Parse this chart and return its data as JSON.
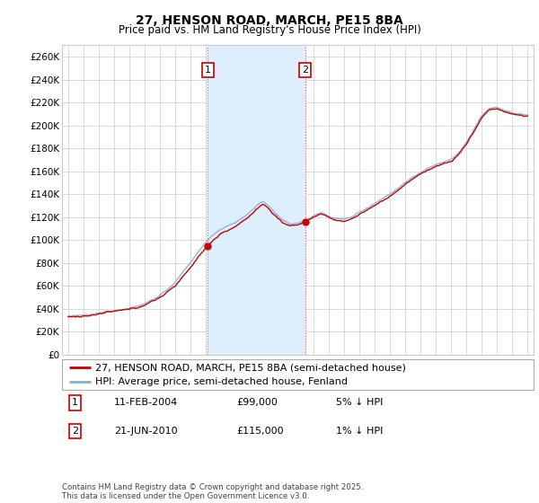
{
  "title": "27, HENSON ROAD, MARCH, PE15 8BA",
  "subtitle": "Price paid vs. HM Land Registry's House Price Index (HPI)",
  "ylabel_values": [
    "£0",
    "£20K",
    "£40K",
    "£60K",
    "£80K",
    "£100K",
    "£120K",
    "£140K",
    "£160K",
    "£180K",
    "£200K",
    "£220K",
    "£240K",
    "£260K"
  ],
  "ylim": [
    0,
    270000
  ],
  "yticks": [
    0,
    20000,
    40000,
    60000,
    80000,
    100000,
    120000,
    140000,
    160000,
    180000,
    200000,
    220000,
    240000,
    260000
  ],
  "xlim_start": 1994.6,
  "xlim_end": 2025.4,
  "xticks": [
    1995,
    1996,
    1997,
    1998,
    1999,
    2000,
    2001,
    2002,
    2003,
    2004,
    2005,
    2006,
    2007,
    2008,
    2009,
    2010,
    2011,
    2012,
    2013,
    2014,
    2015,
    2016,
    2017,
    2018,
    2019,
    2020,
    2021,
    2022,
    2023,
    2024,
    2025
  ],
  "hpi_color": "#7fb3d3",
  "price_color": "#cc0000",
  "shade_color": "#ddeeff",
  "grid_color": "#cccccc",
  "background_color": "#ffffff",
  "sale1_date_num": 2004.12,
  "sale1_price": 99000,
  "sale2_date_num": 2010.47,
  "sale2_price": 115000,
  "legend_line1": "27, HENSON ROAD, MARCH, PE15 8BA (semi-detached house)",
  "legend_line2": "HPI: Average price, semi-detached house, Fenland",
  "table_row1": [
    "1",
    "11-FEB-2004",
    "£99,000",
    "5% ↓ HPI"
  ],
  "table_row2": [
    "2",
    "21-JUN-2010",
    "£115,000",
    "1% ↓ HPI"
  ],
  "footer": "Contains HM Land Registry data © Crown copyright and database right 2025.\nThis data is licensed under the Open Government Licence v3.0.",
  "title_fontsize": 10,
  "subtitle_fontsize": 8.5,
  "tick_fontsize": 7.5,
  "legend_fontsize": 8
}
